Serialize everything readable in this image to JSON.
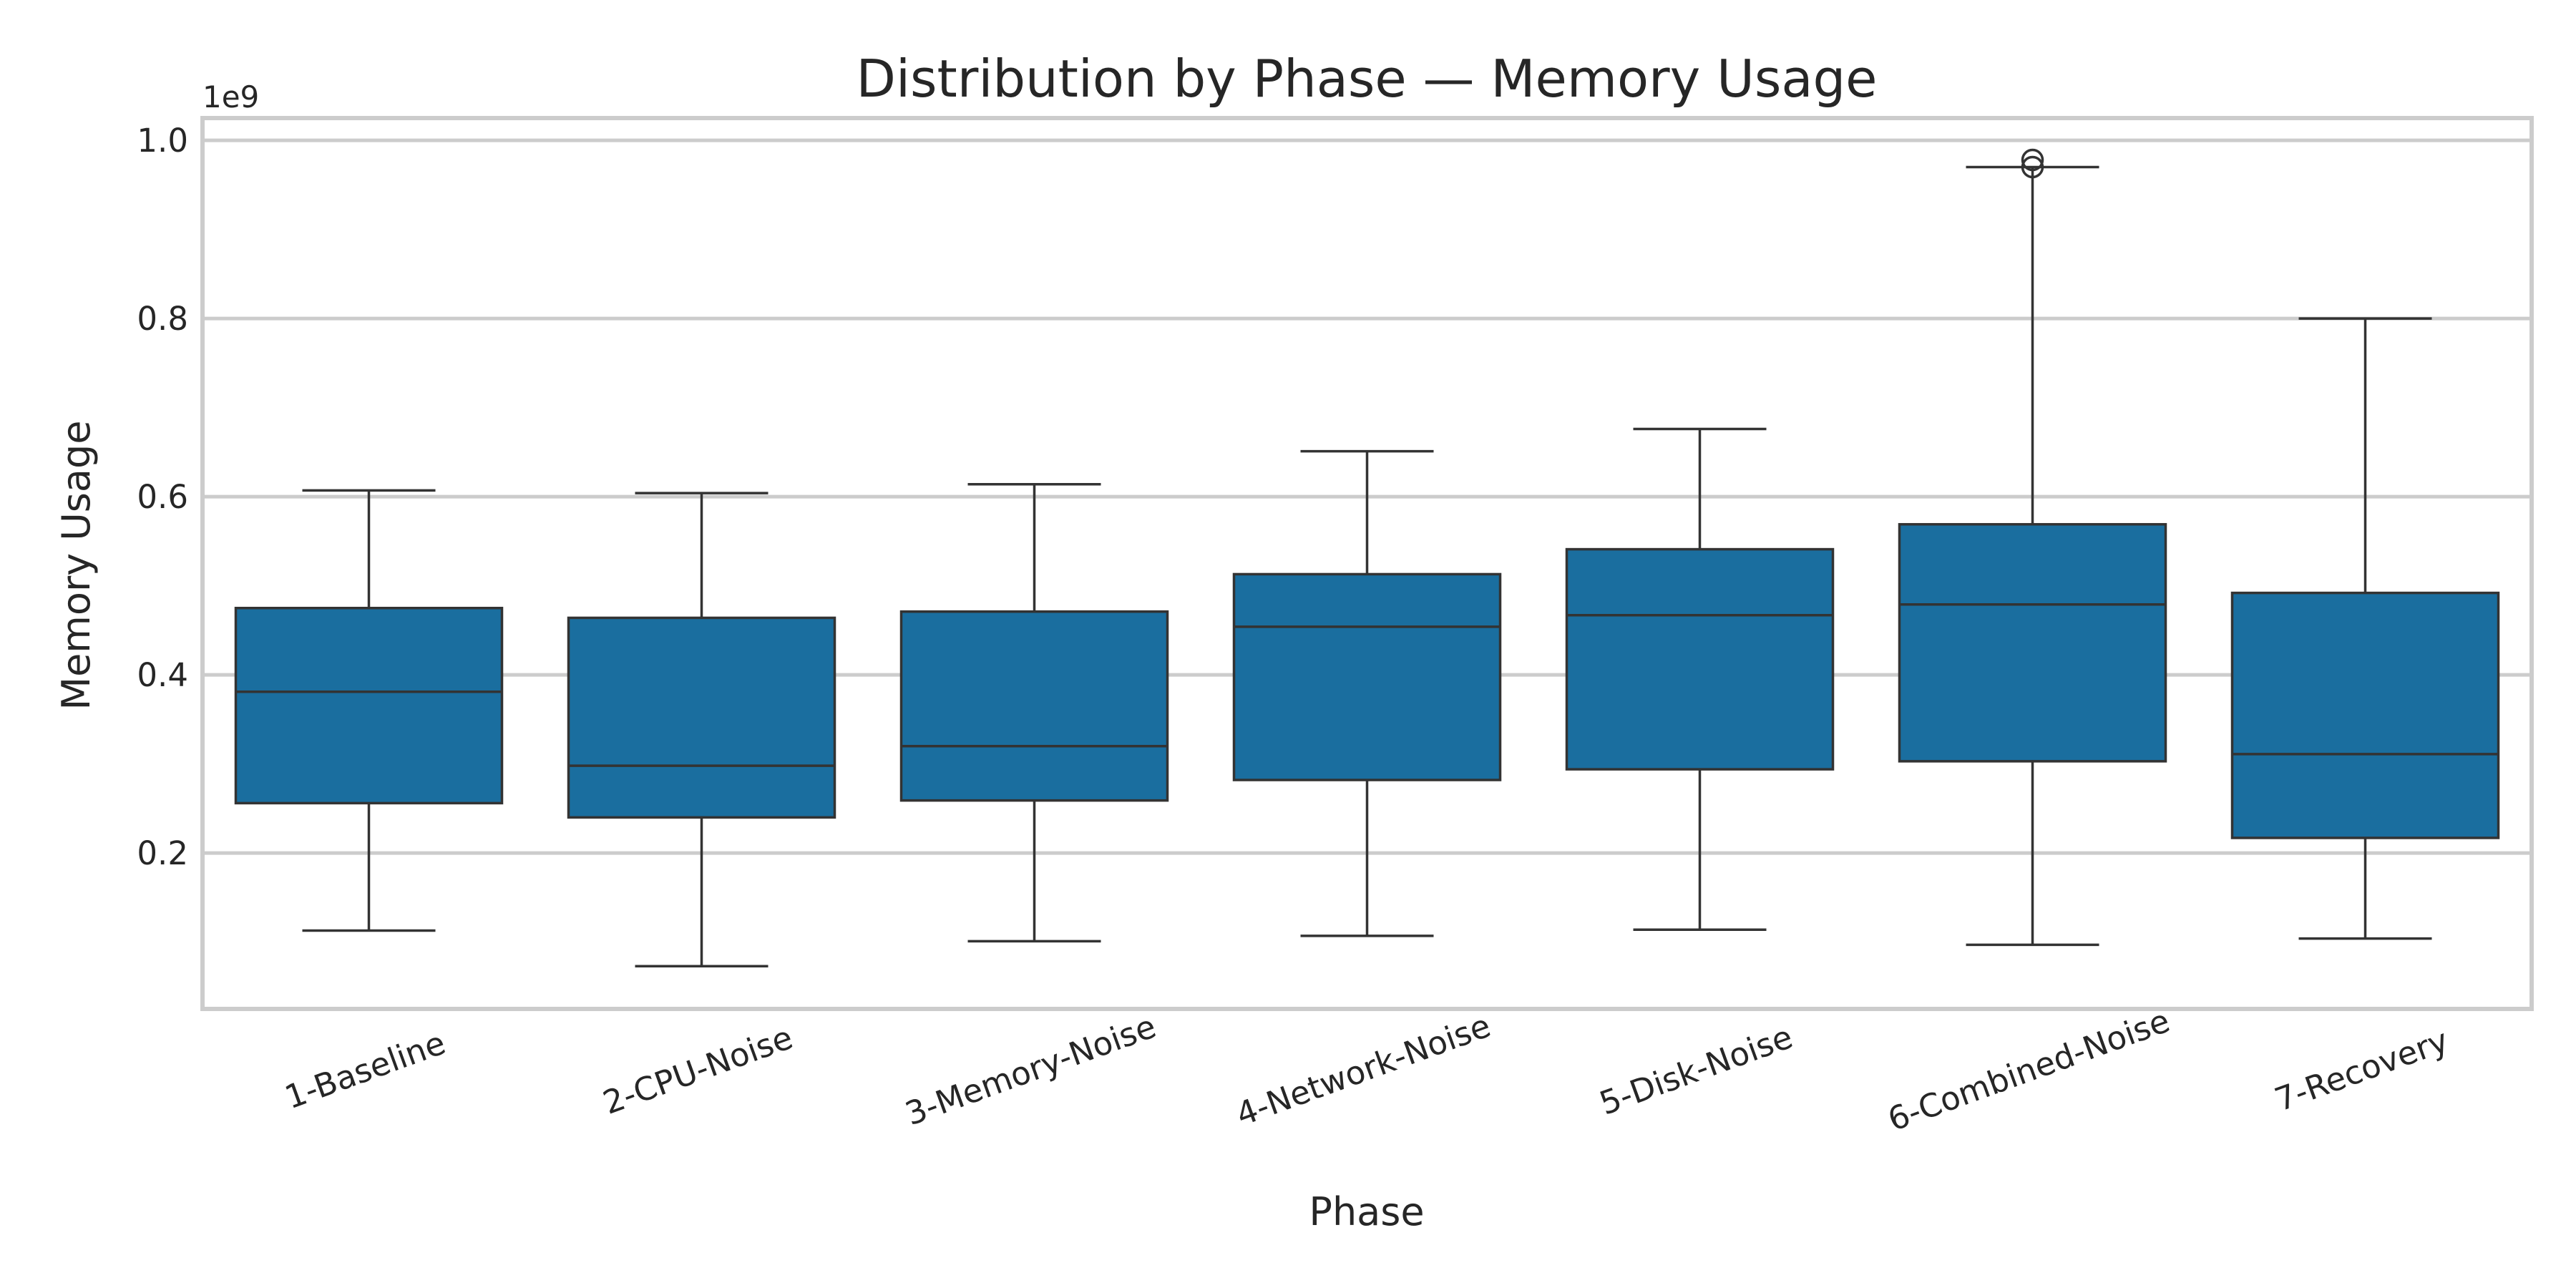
{
  "chart_data": {
    "type": "box",
    "title": "Distribution by Phase — Memory Usage",
    "xlabel": "Phase",
    "ylabel": "Memory Usage",
    "y_offset_label": "1e9",
    "y_scale_factor": 1000000000,
    "ylim": [
      0.025,
      1.025
    ],
    "yticks": [
      0.2,
      0.4,
      0.6,
      0.8,
      1.0
    ],
    "ytick_labels": [
      "0.2",
      "0.4",
      "0.6",
      "0.8",
      "1.0"
    ],
    "grid": true,
    "box_color": "#1a6e9f",
    "line_color": "#333333",
    "grid_color": "#cccccc",
    "categories": [
      "1-Baseline",
      "2-CPU-Noise",
      "3-Memory-Noise",
      "4-Network-Noise",
      "5-Disk-Noise",
      "6-Combined-Noise",
      "7-Recovery"
    ],
    "boxes": [
      {
        "category": "1-Baseline",
        "whisker_low": 0.113,
        "q1": 0.256,
        "median": 0.381,
        "q3": 0.475,
        "whisker_high": 0.607,
        "outliers": []
      },
      {
        "category": "2-CPU-Noise",
        "whisker_low": 0.073,
        "q1": 0.24,
        "median": 0.298,
        "q3": 0.464,
        "whisker_high": 0.604,
        "outliers": []
      },
      {
        "category": "3-Memory-Noise",
        "whisker_low": 0.101,
        "q1": 0.259,
        "median": 0.32,
        "q3": 0.471,
        "whisker_high": 0.614,
        "outliers": []
      },
      {
        "category": "4-Network-Noise",
        "whisker_low": 0.107,
        "q1": 0.282,
        "median": 0.454,
        "q3": 0.513,
        "whisker_high": 0.651,
        "outliers": []
      },
      {
        "category": "5-Disk-Noise",
        "whisker_low": 0.114,
        "q1": 0.294,
        "median": 0.467,
        "q3": 0.541,
        "whisker_high": 0.676,
        "outliers": []
      },
      {
        "category": "6-Combined-Noise",
        "whisker_low": 0.097,
        "q1": 0.303,
        "median": 0.479,
        "q3": 0.569,
        "whisker_high": 0.97,
        "outliers": [
          0.97,
          0.978
        ]
      },
      {
        "category": "7-Recovery",
        "whisker_low": 0.104,
        "q1": 0.217,
        "median": 0.311,
        "q3": 0.492,
        "whisker_high": 0.8,
        "outliers": []
      }
    ]
  }
}
